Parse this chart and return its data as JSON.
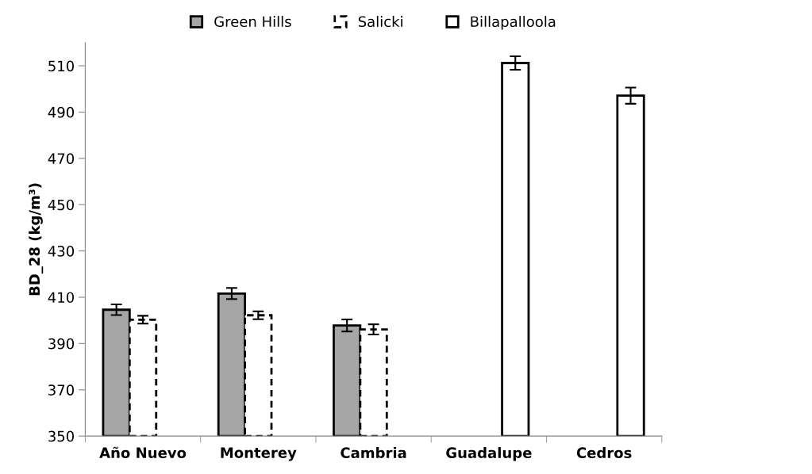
{
  "chart_data": {
    "type": "bar",
    "ylabel": "BD_28 (kg/m³)",
    "categories": [
      "Año Nuevo",
      "Monterey",
      "Cambria",
      "Guadalupe",
      "Cedros"
    ],
    "series": [
      {
        "name": "Green Hills",
        "color": "#a6a6a6",
        "line_style": "solid",
        "values": [
          404.6,
          411.6,
          397.8,
          null,
          null
        ],
        "errors": [
          2.3,
          2.4,
          2.6,
          null,
          null
        ]
      },
      {
        "name": "Salicki",
        "color": "#ffffff",
        "line_style": "dashed",
        "values": [
          400.3,
          402.2,
          396.1,
          null,
          null
        ],
        "errors": [
          1.7,
          1.7,
          2.2,
          null,
          null
        ]
      },
      {
        "name": "Billapalloola",
        "color": "#ffffff",
        "line_style": "solid",
        "values": [
          null,
          null,
          null,
          511.2,
          497.1
        ],
        "errors": [
          null,
          null,
          null,
          2.9,
          3.5
        ]
      }
    ],
    "ylim": [
      350,
      520
    ],
    "yticks": [
      350,
      370,
      390,
      410,
      430,
      450,
      470,
      490,
      510
    ],
    "grid": false,
    "legend": "top"
  }
}
